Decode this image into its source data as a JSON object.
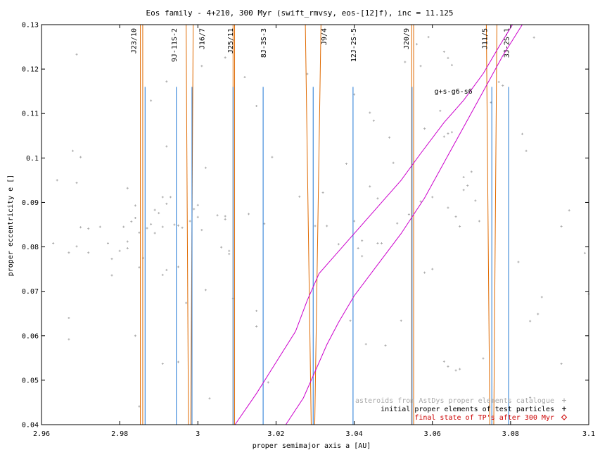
{
  "chart_data": {
    "type": "scatter",
    "title": "Eos family - 4+210, 300 Myr (swift_rmvsy, eos-[12]f), inc = 11.125",
    "xlabel": "proper semimajor axis a [AU]",
    "ylabel": "proper eccentricity e []",
    "xlim": [
      2.96,
      3.1
    ],
    "ylim": [
      0.04,
      0.13
    ],
    "xticks": [
      2.96,
      2.98,
      3.0,
      3.02,
      3.04,
      3.06,
      3.08,
      3.1
    ],
    "xtick_labels": [
      "2.96",
      "2.98",
      "3",
      "3.02",
      "3.04",
      "3.06",
      "3.08",
      "3.1"
    ],
    "yticks": [
      0.04,
      0.05,
      0.06,
      0.07,
      0.08,
      0.09,
      0.1,
      0.11,
      0.12,
      0.13
    ],
    "ytick_labels": [
      "0.04",
      "0.05",
      "0.06",
      "0.07",
      "0.08",
      "0.09",
      "0.1",
      "0.11",
      "0.12",
      "0.13"
    ],
    "grid": false,
    "legend_position": "bottom-right",
    "legend": [
      {
        "label": "asteroids from AstDys proper elements catalogue",
        "color": "#aaaaaa",
        "marker": "+"
      },
      {
        "label": "initial proper elements of test particles",
        "color": "#000000",
        "marker": "+"
      },
      {
        "label": "final state of TP's after 300 Myr",
        "color": "#cc0000",
        "marker": "diamond"
      }
    ],
    "resonances": [
      {
        "label": "J23/10",
        "a": 2.9865,
        "e_top": 0.116,
        "label_a": 2.9835
      },
      {
        "label": "9J-11S-2",
        "a": 2.9945,
        "e_top": 0.116,
        "label_a": 2.9938
      },
      {
        "label": "J16/7",
        "a": 2.9985,
        "e_top": 0.116,
        "label_a": 3.0009
      },
      {
        "label": "J25/11",
        "a": 3.009,
        "e_top": 0.116,
        "label_a": 3.0082
      },
      {
        "label": "8J-3S-3",
        "a": 3.0167,
        "e_top": 0.116,
        "label_a": 3.0167
      },
      {
        "label": "J9/4",
        "a": 3.0295,
        "e_top": 0.116,
        "label_a": 3.0322
      },
      {
        "label": "12J-2S-5",
        "a": 3.0397,
        "e_top": 0.116,
        "label_a": 3.0397
      },
      {
        "label": "J20/9",
        "a": 3.0548,
        "e_top": 0.116,
        "label_a": 3.0532
      },
      {
        "label": "J11/5",
        "a": 3.0752,
        "e_top": 0.116,
        "label_a": 3.0733
      },
      {
        "label": "3J-2S-1",
        "a": 3.0795,
        "e_top": 0.116,
        "label_a": 3.0789
      }
    ],
    "secular_resonance_label": "g+s-g6-s6",
    "secular_resonance_curves": [
      {
        "x": [
          3.0095,
          3.015,
          3.02,
          3.025,
          3.028,
          3.031,
          3.035,
          3.04,
          3.046,
          3.052,
          3.057,
          3.063,
          3.068,
          3.073,
          3.077,
          3.0805
        ],
        "y": [
          0.04,
          0.047,
          0.054,
          0.061,
          0.068,
          0.074,
          0.078,
          0.083,
          0.089,
          0.095,
          0.101,
          0.108,
          0.113,
          0.119,
          0.125,
          0.13
        ]
      },
      {
        "x": [
          3.0225,
          3.027,
          3.0305,
          3.033,
          3.036,
          3.04,
          3.046,
          3.052,
          3.058,
          3.063,
          3.068,
          3.073,
          3.078,
          3.083
        ],
        "y": [
          0.04,
          0.046,
          0.053,
          0.058,
          0.063,
          0.069,
          0.076,
          0.083,
          0.091,
          0.099,
          0.107,
          0.115,
          0.123,
          0.13
        ]
      }
    ],
    "resonance_boundaries": [
      {
        "a_left": 2.9853,
        "a_right": 2.9859
      },
      {
        "a_left": 2.9976,
        "a_right": 2.9982,
        "a_top_left": 2.997,
        "a_top_right": 2.9988
      },
      {
        "a_left": 3.009,
        "a_right": 3.0094
      },
      {
        "a_left": 3.029,
        "a_right": 3.0299,
        "a_top_left": 3.0275,
        "a_top_right": 3.0315
      },
      {
        "a_left": 3.0547,
        "a_right": 3.0552
      },
      {
        "a_left": 3.0747,
        "a_right": 3.0757,
        "a_top_left": 3.0738,
        "a_top_right": 3.0765
      }
    ],
    "asteroids": [
      [
        2.963,
        0.0808
      ],
      [
        2.964,
        0.095
      ],
      [
        2.967,
        0.064
      ],
      [
        2.967,
        0.0592
      ],
      [
        2.967,
        0.0787
      ],
      [
        2.968,
        0.1016
      ],
      [
        2.969,
        0.0944
      ],
      [
        2.969,
        0.0801
      ],
      [
        2.969,
        0.1233
      ],
      [
        2.97,
        0.1002
      ],
      [
        2.97,
        0.0844
      ],
      [
        2.972,
        0.0787
      ],
      [
        2.972,
        0.0841
      ],
      [
        2.975,
        0.0845
      ],
      [
        2.977,
        0.0808
      ],
      [
        2.978,
        0.0773
      ],
      [
        2.978,
        0.0736
      ],
      [
        2.98,
        0.0791
      ],
      [
        2.981,
        0.0845
      ],
      [
        2.982,
        0.0932
      ],
      [
        2.982,
        0.0812
      ],
      [
        2.982,
        0.0797
      ],
      [
        2.983,
        0.0857
      ],
      [
        2.984,
        0.0893
      ],
      [
        2.984,
        0.0865
      ],
      [
        2.984,
        0.06
      ],
      [
        2.985,
        0.0832
      ],
      [
        2.985,
        0.0754
      ],
      [
        2.985,
        0.0441
      ],
      [
        2.986,
        0.0775
      ],
      [
        2.987,
        0.0842
      ],
      [
        2.988,
        0.1129
      ],
      [
        2.988,
        0.0851
      ],
      [
        2.989,
        0.0883
      ],
      [
        2.989,
        0.0831
      ],
      [
        2.99,
        0.0876
      ],
      [
        2.991,
        0.0912
      ],
      [
        2.991,
        0.0845
      ],
      [
        2.991,
        0.0737
      ],
      [
        2.991,
        0.0537
      ],
      [
        2.992,
        0.1172
      ],
      [
        2.992,
        0.1026
      ],
      [
        2.992,
        0.0897
      ],
      [
        2.992,
        0.0748
      ],
      [
        2.993,
        0.0912
      ],
      [
        2.994,
        0.085
      ],
      [
        2.995,
        0.0848
      ],
      [
        2.995,
        0.0755
      ],
      [
        2.995,
        0.0541
      ],
      [
        2.996,
        0.0843
      ],
      [
        2.997,
        0.0674
      ],
      [
        2.998,
        0.0858
      ],
      [
        2.999,
        0.0885
      ],
      [
        3.0,
        0.0894
      ],
      [
        3.0,
        0.0867
      ],
      [
        3.001,
        0.1207
      ],
      [
        3.001,
        0.0838
      ],
      [
        3.002,
        0.0978
      ],
      [
        3.002,
        0.0703
      ],
      [
        3.003,
        0.0459
      ],
      [
        3.005,
        0.0871
      ],
      [
        3.006,
        0.0799
      ],
      [
        3.007,
        0.1226
      ],
      [
        3.007,
        0.0869
      ],
      [
        3.007,
        0.0862
      ],
      [
        3.008,
        0.0791
      ],
      [
        3.008,
        0.0784
      ],
      [
        3.009,
        0.0684
      ],
      [
        3.012,
        0.1182
      ],
      [
        3.013,
        0.0874
      ],
      [
        3.015,
        0.1117
      ],
      [
        3.015,
        0.0656
      ],
      [
        3.015,
        0.0621
      ],
      [
        3.017,
        0.0852
      ],
      [
        3.018,
        0.0495
      ],
      [
        3.019,
        0.1002
      ],
      [
        3.026,
        0.0913
      ],
      [
        3.028,
        0.1189
      ],
      [
        3.03,
        0.0847
      ],
      [
        3.032,
        0.0922
      ],
      [
        3.033,
        0.0847
      ],
      [
        3.036,
        0.0806
      ],
      [
        3.038,
        0.0987
      ],
      [
        3.039,
        0.0634
      ],
      [
        3.04,
        0.1143
      ],
      [
        3.04,
        0.0858
      ],
      [
        3.041,
        0.0797
      ],
      [
        3.042,
        0.0814
      ],
      [
        3.042,
        0.0779
      ],
      [
        3.043,
        0.0581
      ],
      [
        3.044,
        0.1102
      ],
      [
        3.044,
        0.0936
      ],
      [
        3.045,
        0.1084
      ],
      [
        3.046,
        0.0909
      ],
      [
        3.046,
        0.0808
      ],
      [
        3.047,
        0.0808
      ],
      [
        3.048,
        0.0578
      ],
      [
        3.049,
        0.1046
      ],
      [
        3.05,
        0.0989
      ],
      [
        3.051,
        0.0853
      ],
      [
        3.052,
        0.0634
      ],
      [
        3.053,
        0.1216
      ],
      [
        3.054,
        0.0873
      ],
      [
        3.056,
        0.1256
      ],
      [
        3.057,
        0.1207
      ],
      [
        3.057,
        0.0902
      ],
      [
        3.058,
        0.1066
      ],
      [
        3.058,
        0.0742
      ],
      [
        3.059,
        0.1272
      ],
      [
        3.06,
        0.0912
      ],
      [
        3.06,
        0.075
      ],
      [
        3.062,
        0.1106
      ],
      [
        3.063,
        0.1239
      ],
      [
        3.063,
        0.1048
      ],
      [
        3.063,
        0.0542
      ],
      [
        3.064,
        0.1225
      ],
      [
        3.064,
        0.1055
      ],
      [
        3.064,
        0.0888
      ],
      [
        3.064,
        0.0531
      ],
      [
        3.065,
        0.1209
      ],
      [
        3.065,
        0.1058
      ],
      [
        3.066,
        0.0868
      ],
      [
        3.066,
        0.0522
      ],
      [
        3.067,
        0.0846
      ],
      [
        3.067,
        0.0525
      ],
      [
        3.068,
        0.0957
      ],
      [
        3.068,
        0.0928
      ],
      [
        3.069,
        0.0938
      ],
      [
        3.07,
        0.0969
      ],
      [
        3.071,
        0.0904
      ],
      [
        3.072,
        0.0858
      ],
      [
        3.073,
        0.0549
      ],
      [
        3.075,
        0.1125
      ],
      [
        3.077,
        0.1171
      ],
      [
        3.078,
        0.1163
      ],
      [
        3.082,
        0.0766
      ],
      [
        3.083,
        0.1054
      ],
      [
        3.084,
        0.1016
      ],
      [
        3.085,
        0.0461
      ],
      [
        3.085,
        0.0633
      ],
      [
        3.086,
        0.1271
      ],
      [
        3.087,
        0.0649
      ],
      [
        3.088,
        0.0687
      ],
      [
        3.093,
        0.0846
      ],
      [
        3.093,
        0.0537
      ],
      [
        3.095,
        0.0882
      ],
      [
        3.099,
        0.0786
      ],
      [
        3.1,
        0.0694
      ]
    ]
  }
}
